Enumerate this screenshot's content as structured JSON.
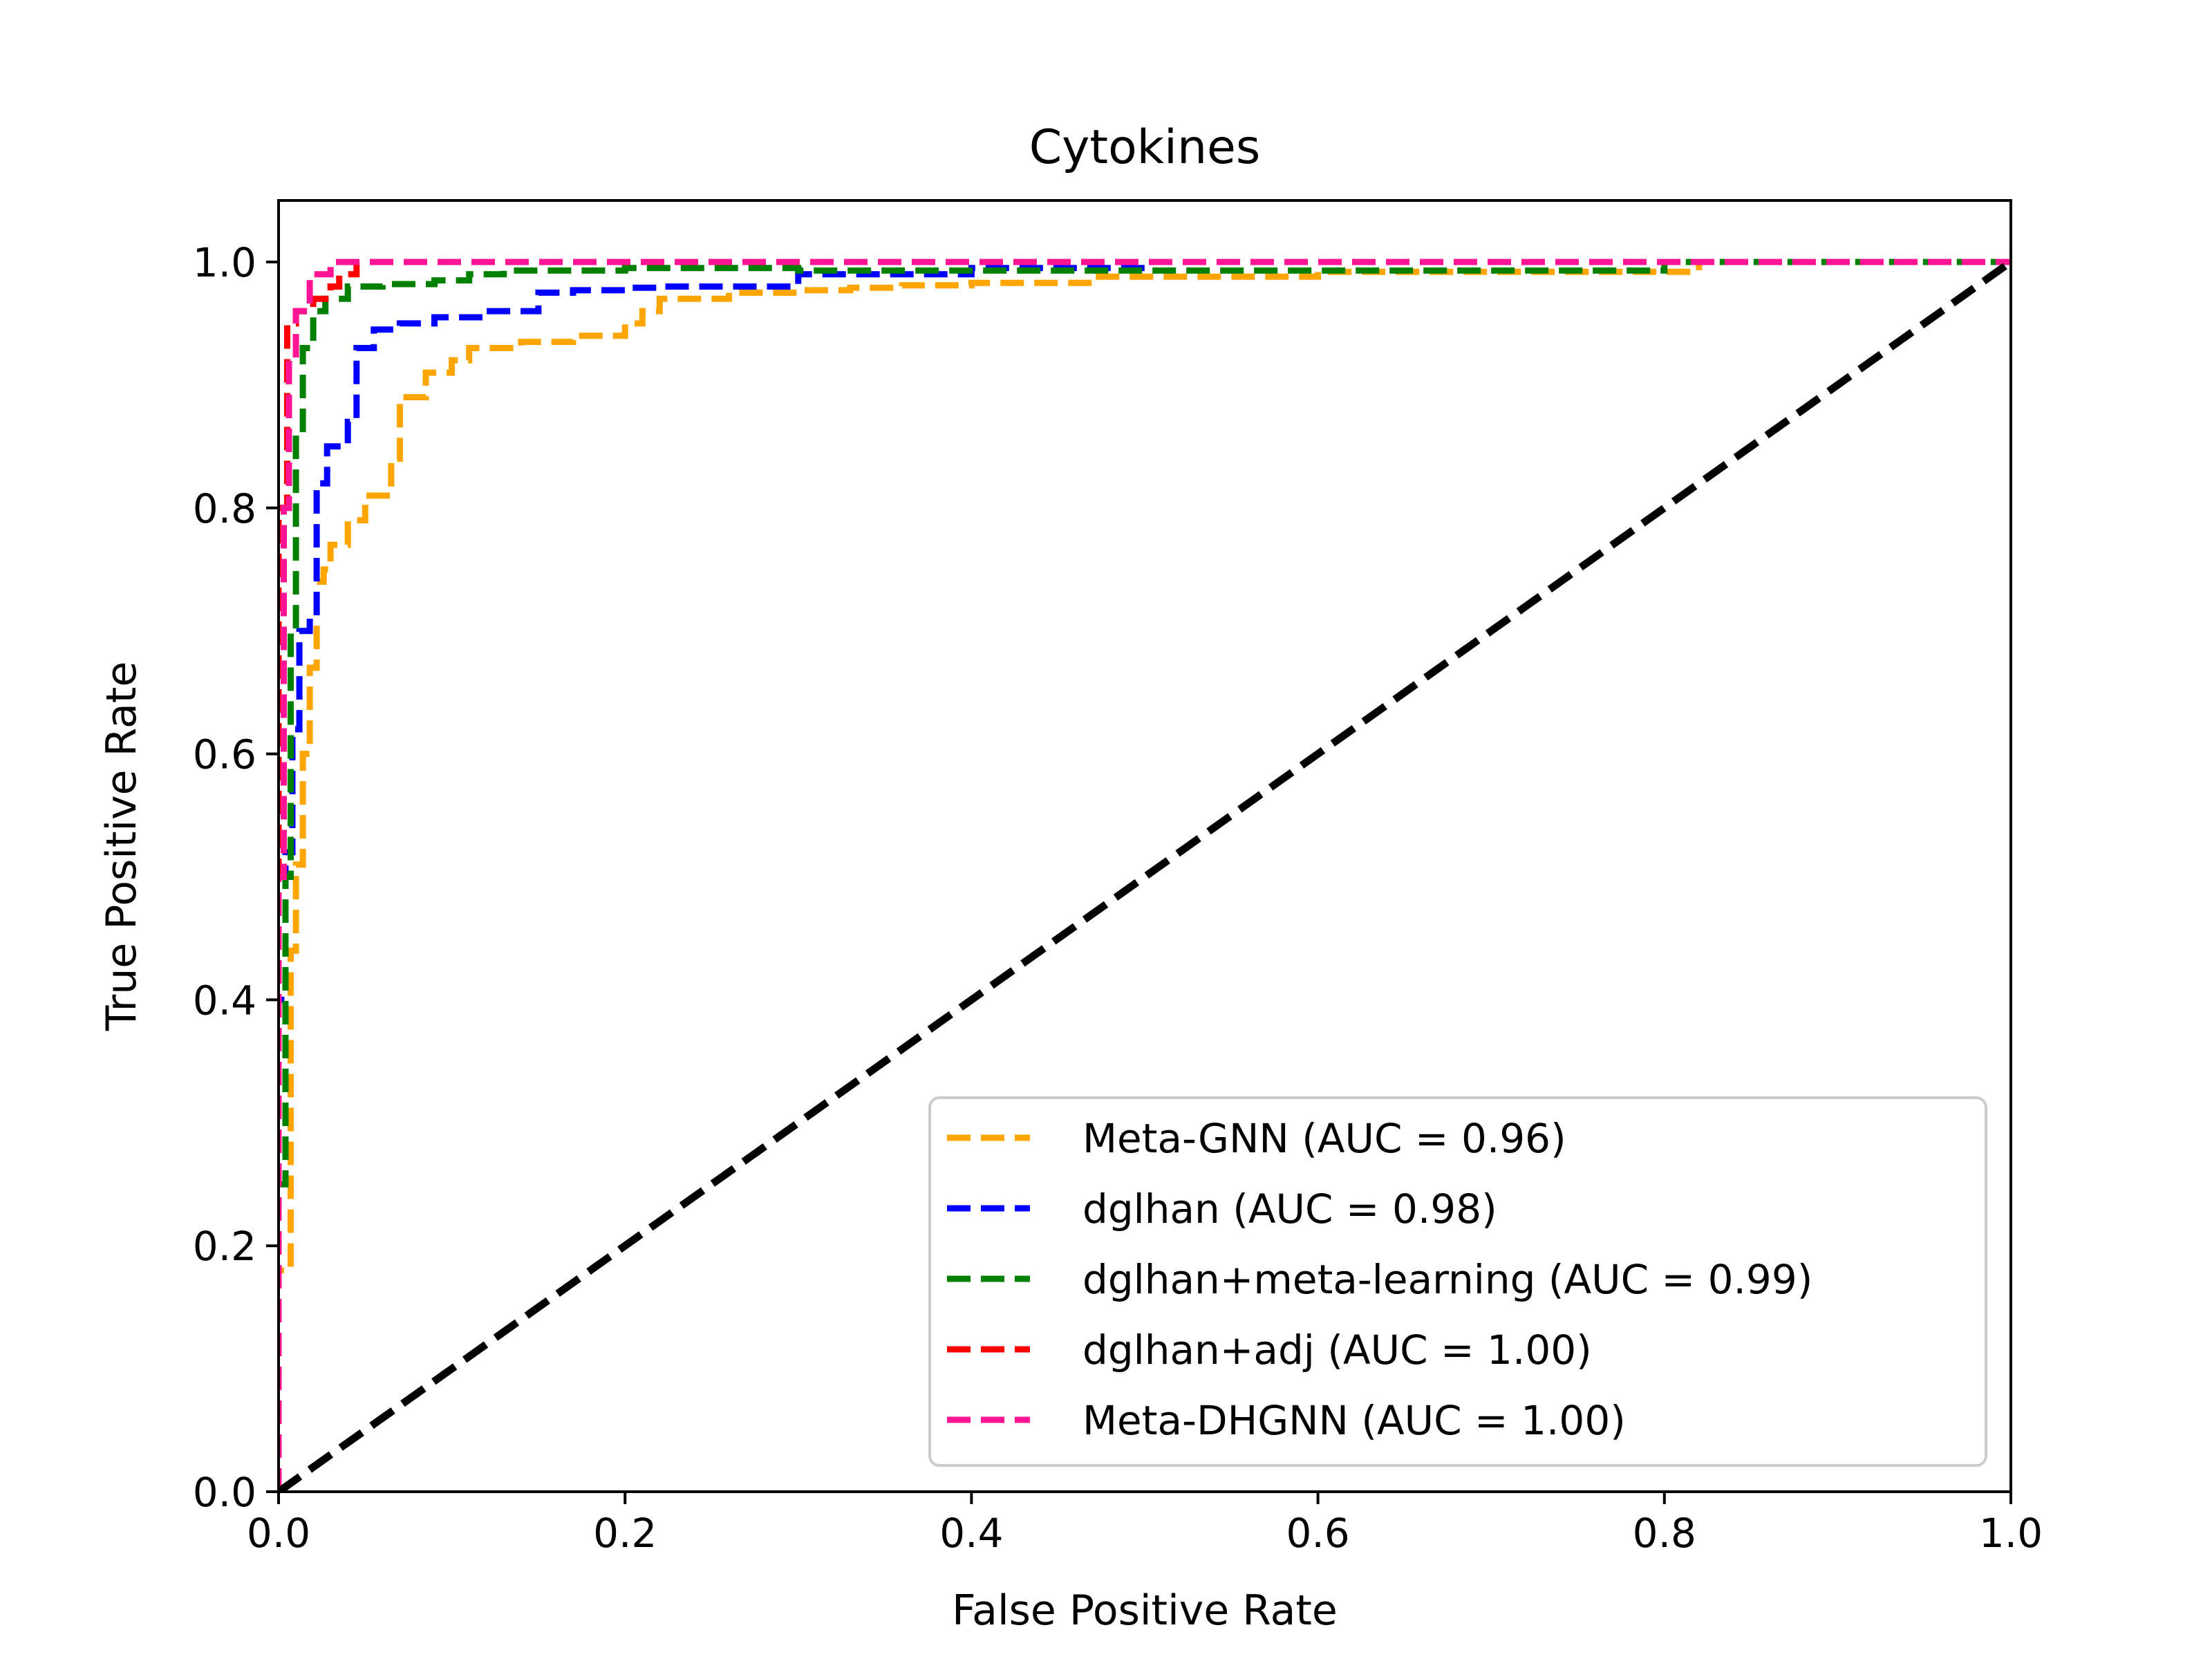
{
  "chart_data": {
    "type": "line",
    "title": "Cytokines",
    "xlabel": "False Positive Rate",
    "ylabel": "True Positive Rate",
    "xlim": [
      0.0,
      1.0
    ],
    "ylim": [
      0.0,
      1.05
    ],
    "x_ticks": [
      "0.0",
      "0.2",
      "0.4",
      "0.6",
      "0.8",
      "1.0"
    ],
    "y_ticks": [
      "0.0",
      "0.2",
      "0.4",
      "0.6",
      "0.8",
      "1.0"
    ],
    "grid": false,
    "legend_position": "lower-right",
    "series": [
      {
        "name": "Meta-GNN (AUC = 0.96)",
        "color": "#ffa500",
        "x": [
          0.0,
          0.0,
          0.007,
          0.007,
          0.01,
          0.01,
          0.014,
          0.014,
          0.018,
          0.018,
          0.022,
          0.022,
          0.026,
          0.026,
          0.03,
          0.03,
          0.04,
          0.04,
          0.05,
          0.05,
          0.065,
          0.065,
          0.07,
          0.07,
          0.085,
          0.085,
          0.1,
          0.1,
          0.11,
          0.11,
          0.14,
          0.14,
          0.17,
          0.17,
          0.2,
          0.2,
          0.21,
          0.21,
          0.22,
          0.22,
          0.26,
          0.26,
          0.3,
          0.3,
          0.33,
          0.33,
          0.36,
          0.36,
          0.4,
          0.4,
          0.47,
          0.47,
          0.6,
          0.6,
          0.82,
          0.82,
          1.0
        ],
        "y": [
          0.0,
          0.18,
          0.18,
          0.44,
          0.44,
          0.51,
          0.51,
          0.6,
          0.6,
          0.67,
          0.67,
          0.74,
          0.74,
          0.75,
          0.75,
          0.77,
          0.77,
          0.79,
          0.79,
          0.81,
          0.81,
          0.84,
          0.84,
          0.89,
          0.89,
          0.91,
          0.91,
          0.92,
          0.92,
          0.93,
          0.93,
          0.935,
          0.935,
          0.94,
          0.94,
          0.95,
          0.95,
          0.96,
          0.96,
          0.97,
          0.97,
          0.975,
          0.975,
          0.977,
          0.977,
          0.979,
          0.979,
          0.981,
          0.981,
          0.983,
          0.983,
          0.988,
          0.988,
          0.992,
          0.992,
          1.0,
          1.0
        ]
      },
      {
        "name": "dglhan (AUC = 0.98)",
        "color": "#0000ff",
        "x": [
          0.0,
          0.0,
          0.004,
          0.004,
          0.008,
          0.008,
          0.012,
          0.012,
          0.018,
          0.018,
          0.022,
          0.022,
          0.028,
          0.028,
          0.04,
          0.04,
          0.045,
          0.045,
          0.055,
          0.055,
          0.07,
          0.07,
          0.09,
          0.09,
          0.12,
          0.12,
          0.15,
          0.15,
          0.17,
          0.17,
          0.2,
          0.2,
          0.22,
          0.22,
          0.3,
          0.3,
          0.4,
          0.4,
          0.5,
          0.5,
          1.0
        ],
        "y": [
          0.0,
          0.4,
          0.4,
          0.52,
          0.52,
          0.62,
          0.62,
          0.7,
          0.7,
          0.71,
          0.71,
          0.82,
          0.82,
          0.85,
          0.85,
          0.87,
          0.87,
          0.93,
          0.93,
          0.945,
          0.945,
          0.95,
          0.95,
          0.955,
          0.955,
          0.96,
          0.96,
          0.975,
          0.975,
          0.977,
          0.977,
          0.979,
          0.979,
          0.98,
          0.98,
          0.99,
          0.99,
          0.995,
          0.995,
          1.0,
          1.0
        ]
      },
      {
        "name": "dglhan+meta-learning (AUC = 0.99)",
        "color": "#008000",
        "x": [
          0.0,
          0.0,
          0.004,
          0.004,
          0.007,
          0.007,
          0.01,
          0.01,
          0.014,
          0.014,
          0.02,
          0.02,
          0.027,
          0.027,
          0.04,
          0.04,
          0.06,
          0.06,
          0.09,
          0.09,
          0.11,
          0.11,
          0.13,
          0.13,
          0.2,
          0.2,
          0.3,
          0.3,
          0.6,
          0.6,
          0.8,
          0.8,
          1.0
        ],
        "y": [
          0.0,
          0.25,
          0.25,
          0.5,
          0.5,
          0.7,
          0.7,
          0.86,
          0.86,
          0.93,
          0.93,
          0.96,
          0.96,
          0.97,
          0.97,
          0.98,
          0.98,
          0.982,
          0.982,
          0.985,
          0.985,
          0.99,
          0.99,
          0.993,
          0.993,
          0.995,
          0.995,
          0.993,
          0.993,
          0.993,
          0.993,
          1.0,
          1.0
        ]
      },
      {
        "name": "dglhan+adj (AUC = 1.00)",
        "color": "#ff0000",
        "x": [
          0.0,
          0.0,
          0.005,
          0.005,
          0.01,
          0.01,
          0.02,
          0.02,
          0.03,
          0.03,
          0.035,
          0.035,
          0.045,
          0.045,
          1.0
        ],
        "y": [
          0.0,
          0.8,
          0.8,
          0.95,
          0.95,
          0.96,
          0.96,
          0.97,
          0.97,
          0.98,
          0.98,
          0.99,
          0.99,
          1.0,
          1.0
        ]
      },
      {
        "name": "Meta-DHGNN (AUC = 1.00)",
        "color": "#ff1493",
        "x": [
          0.0,
          0.0,
          0.003,
          0.003,
          0.006,
          0.006,
          0.01,
          0.01,
          0.018,
          0.018,
          0.03,
          0.03,
          1.0
        ],
        "y": [
          0.0,
          0.5,
          0.5,
          0.8,
          0.8,
          0.92,
          0.92,
          0.96,
          0.96,
          0.99,
          0.99,
          1.0,
          1.0
        ]
      }
    ],
    "reference_line": {
      "color": "#000000",
      "x": [
        0.0,
        1.0
      ],
      "y": [
        0.0,
        1.0
      ]
    }
  }
}
